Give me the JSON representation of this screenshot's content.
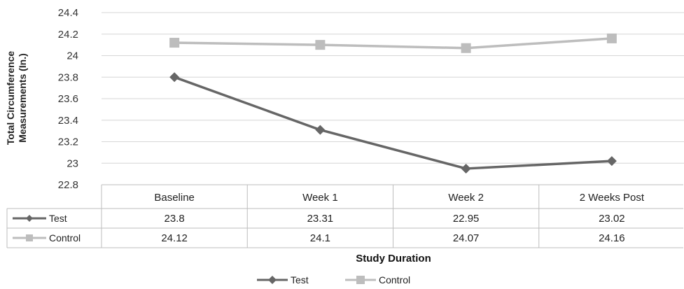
{
  "chart_data": {
    "type": "line",
    "title": "",
    "xlabel": "Study Duration",
    "ylabel": [
      "Total Circumference",
      "Measurements (In.)"
    ],
    "ylim": [
      22.8,
      24.4
    ],
    "yticks": [
      "22.8",
      "23",
      "23.2",
      "23.4",
      "23.6",
      "23.8",
      "24",
      "24.2",
      "24.4"
    ],
    "ytick_values": [
      22.8,
      23.0,
      23.2,
      23.4,
      23.6,
      23.8,
      24.0,
      24.2,
      24.4
    ],
    "categories": [
      "Baseline",
      "Week 1",
      "Week 2",
      "2 Weeks Post"
    ],
    "grid": true,
    "legend_position": "bottom",
    "data_table": true,
    "series": [
      {
        "name": "Test",
        "values": [
          23.8,
          23.31,
          22.95,
          23.02
        ],
        "labels": [
          "23.8",
          "23.31",
          "22.95",
          "23.02"
        ],
        "color": "#666666",
        "marker": "diamond"
      },
      {
        "name": "Control",
        "values": [
          24.12,
          24.1,
          24.07,
          24.16
        ],
        "labels": [
          "24.12",
          "24.1",
          "24.07",
          "24.16"
        ],
        "color": "#bdbdbd",
        "marker": "square"
      }
    ]
  }
}
